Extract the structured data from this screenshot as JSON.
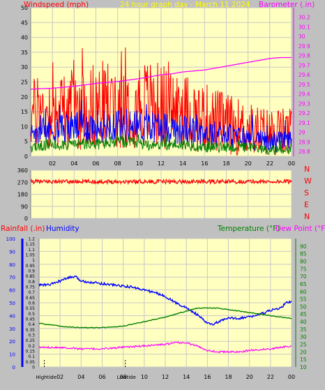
{
  "colors": {
    "background": "#c0c0c0",
    "plot_bg": "#ffffc0",
    "grid": "#c8c8c8",
    "wind": "#ff0000",
    "gust": "#ff0000",
    "avg_wind": "#0000ff",
    "low_wind": "#008000",
    "barometer": "#ff00ff",
    "direction": "#ff0000",
    "humidity": "#0000ff",
    "temperature": "#008000",
    "dewpoint": "#ff00ff",
    "title": "#ffff00",
    "axis_text": "#000000"
  },
  "chart_data": [
    {
      "type": "line",
      "name": "top",
      "title": "24 hour graph day - March 11 2024",
      "left_label": "Windspeed (mph)",
      "right_label": "Barometer (.in)",
      "x_ticks": [
        "02",
        "04",
        "06",
        "08",
        "10",
        "12",
        "14",
        "16",
        "18",
        "20",
        "22",
        "00"
      ],
      "left_ylim": [
        0,
        50
      ],
      "left_ticks": [
        "0",
        "5",
        "10",
        "15",
        "20",
        "25",
        "30",
        "35",
        "40",
        "45",
        "50"
      ],
      "right_ylim": [
        28.75,
        30.3
      ],
      "right_ticks": [
        "28.8",
        "28.9",
        "29",
        "29.1",
        "29.2",
        "29.3",
        "29.4",
        "29.5",
        "29.6",
        "29.7",
        "29.8",
        "29.9",
        "30",
        "30.1",
        "30.2"
      ],
      "barometer": {
        "x": [
          0,
          2,
          4,
          6,
          8,
          10,
          12,
          13,
          14,
          16,
          18,
          20,
          22,
          23,
          24
        ],
        "y": [
          29.45,
          29.46,
          29.48,
          29.51,
          29.53,
          29.56,
          29.6,
          29.61,
          29.63,
          29.65,
          29.69,
          29.73,
          29.77,
          29.78,
          29.78
        ]
      },
      "wind_envelope": {
        "x": [
          0,
          2,
          4,
          6,
          8,
          10,
          12,
          14,
          16,
          18,
          20,
          22,
          24
        ],
        "gust_mean": [
          14,
          15,
          16,
          17,
          18,
          18,
          17,
          15,
          13,
          11,
          9,
          8,
          8
        ],
        "avg_mean": [
          8,
          9,
          10,
          10,
          11,
          10,
          10,
          9,
          8,
          7,
          6,
          5,
          5
        ],
        "low_mean": [
          3,
          4,
          4,
          4,
          5,
          4,
          4,
          4,
          3,
          3,
          3,
          2,
          2
        ]
      }
    },
    {
      "type": "line",
      "name": "direction",
      "x_ticks": [
        "02",
        "04",
        "06",
        "08",
        "10",
        "12",
        "14",
        "16",
        "18",
        "20",
        "22",
        "00"
      ],
      "ylim": [
        0,
        360
      ],
      "y_ticks": [
        "0",
        "90",
        "180",
        "270",
        "360"
      ],
      "compass_labels": [
        "N",
        "W",
        "S",
        "E",
        "N"
      ],
      "direction_mean": 275
    },
    {
      "type": "line",
      "name": "bottom",
      "rainfall_label": "Rainfall (.in)",
      "humidity_label": "Humidity",
      "temperature_label": "Temperature (°F)",
      "dewpoint_label": "Dew Point (°F)",
      "x_ticks": [
        "02",
        "04",
        "06",
        "08",
        "10",
        "12",
        "14",
        "16",
        "18",
        "20",
        "22",
        "00"
      ],
      "humidity_ylim": [
        0,
        100
      ],
      "humidity_ticks": [
        "0",
        "10",
        "20",
        "30",
        "40",
        "50",
        "60",
        "70",
        "80",
        "90",
        "100"
      ],
      "rain_ylim": [
        0,
        1.2
      ],
      "rain_ticks": [
        "0",
        "0.05",
        "0.1",
        "0.15",
        "0.2",
        "0.25",
        "0.3",
        "0.35",
        "0.4",
        "0.45",
        "0.5",
        "0.55",
        "0.6",
        "0.65",
        "0.7",
        "0.75",
        "0.8",
        "0.85",
        "0.9",
        "0.95",
        "1",
        "1.05",
        "1.1",
        "1.15",
        "1.2"
      ],
      "temp_ylim": [
        10,
        95
      ],
      "temp_ticks": [
        "10",
        "15",
        "20",
        "25",
        "30",
        "35",
        "40",
        "45",
        "50",
        "55",
        "60",
        "65",
        "70",
        "75",
        "80",
        "85",
        "90"
      ],
      "humidity": {
        "x": [
          0,
          1,
          2,
          3,
          3.5,
          4,
          5,
          6,
          7,
          8,
          9,
          10,
          11,
          12,
          13,
          14,
          15,
          16,
          16.5,
          17,
          18,
          19,
          20,
          21,
          22,
          23,
          23.5,
          24
        ],
        "y": [
          64,
          64,
          67,
          70,
          70,
          67,
          66,
          65,
          64,
          63,
          62,
          60,
          58,
          55,
          50,
          46,
          41,
          34,
          33,
          35,
          38,
          38,
          39,
          41,
          44,
          46,
          50,
          51
        ]
      },
      "temperature": {
        "x": [
          0,
          2,
          4,
          6,
          8,
          10,
          12,
          13,
          14,
          15,
          16,
          17,
          18,
          20,
          22,
          24
        ],
        "y": [
          39,
          37,
          36,
          36,
          37,
          40,
          43,
          45,
          47,
          49,
          49,
          49,
          48,
          46,
          44,
          42
        ]
      },
      "dewpoint": {
        "x": [
          0,
          2,
          4,
          6,
          8,
          10,
          12,
          13,
          14,
          15,
          16,
          17,
          18,
          19,
          20,
          22,
          24
        ],
        "y": [
          23,
          23,
          22,
          22,
          23,
          24,
          25,
          26,
          26,
          24,
          21,
          20,
          20,
          20,
          21,
          22,
          24
        ]
      },
      "markers": [
        {
          "x": 0.5,
          "label": "Hightide"
        },
        {
          "x": 8.2,
          "label": "Lowtide"
        }
      ]
    }
  ]
}
